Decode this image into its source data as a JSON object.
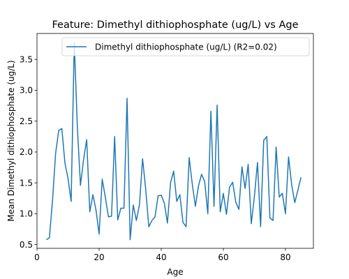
{
  "chart_data": {
    "type": "line",
    "title": "Feature: Dimethyl dithiophosphate (ug/L) vs Age",
    "xlabel": "Age",
    "ylabel": "Mean Dimethyl dithiophosphate (ug/L)",
    "xlim": [
      0,
      89
    ],
    "ylim": [
      0.44,
      3.92
    ],
    "xticks": [
      0,
      20,
      40,
      60,
      80
    ],
    "xtick_labels": [
      "0",
      "20",
      "40",
      "60",
      "80"
    ],
    "yticks": [
      0.5,
      1.0,
      1.5,
      2.0,
      2.5,
      3.0,
      3.5
    ],
    "ytick_labels": [
      "0.5",
      "1.0",
      "1.5",
      "2.0",
      "2.5",
      "3.0",
      "3.5"
    ],
    "grid": false,
    "legend_position": "top-right",
    "series": [
      {
        "name": "Dimethyl dithiophosphate (ug/L) (R2=0.02)",
        "color": "#1f77b4",
        "x": [
          3,
          4,
          5,
          6,
          7,
          8,
          9,
          10,
          11,
          12,
          13,
          14,
          15,
          16,
          17,
          18,
          19,
          20,
          21,
          22,
          23,
          24,
          25,
          26,
          27,
          28,
          29,
          30,
          31,
          32,
          33,
          34,
          35,
          36,
          37,
          38,
          39,
          40,
          41,
          42,
          43,
          44,
          45,
          46,
          47,
          48,
          49,
          50,
          51,
          52,
          53,
          54,
          55,
          56,
          57,
          58,
          59,
          60,
          61,
          62,
          63,
          64,
          65,
          66,
          67,
          68,
          69,
          70,
          71,
          72,
          73,
          74,
          75,
          76,
          77,
          78,
          79,
          80,
          81,
          82,
          83,
          84,
          85
        ],
        "y": [
          0.58,
          0.61,
          1.22,
          1.98,
          2.35,
          2.38,
          1.82,
          1.57,
          1.2,
          3.78,
          2.4,
          1.46,
          1.88,
          2.2,
          1.03,
          1.31,
          1.06,
          0.67,
          1.56,
          1.27,
          0.95,
          0.96,
          2.25,
          0.9,
          1.09,
          1.09,
          2.87,
          0.58,
          1.14,
          0.89,
          1.15,
          1.89,
          1.4,
          0.79,
          0.89,
          0.95,
          1.29,
          1.3,
          1.17,
          0.85,
          1.5,
          1.69,
          1.2,
          1.31,
          0.86,
          0.79,
          1.91,
          1.48,
          1.12,
          1.45,
          1.64,
          1.52,
          1.0,
          2.66,
          1.12,
          2.76,
          1.03,
          1.33,
          0.99,
          1.43,
          1.51,
          1.19,
          1.07,
          1.76,
          1.41,
          1.8,
          0.84,
          1.28,
          1.83,
          0.79,
          2.19,
          2.25,
          0.93,
          0.89,
          2.08,
          1.27,
          1.33,
          1.0,
          1.92,
          1.47,
          1.18,
          1.38,
          1.59
        ]
      }
    ]
  }
}
